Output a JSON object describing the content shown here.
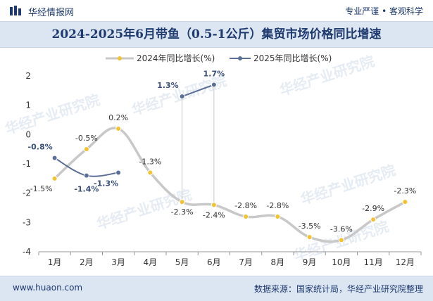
{
  "header": {
    "brand": "华经情报网",
    "tagline": "专业严谨 • 客观科学"
  },
  "title": "2024-2025年6月带鱼（0.5-1公斤）集贸市场价格同比增速",
  "footer": {
    "website": "www.huaon.com",
    "source": "数据来源：国家统计局，华经产业研究院整理"
  },
  "watermark": "华经产业研究院",
  "colors": {
    "series2024_line": "#c8c8c8",
    "series2024_marker": "#f2c230",
    "series2025": "#5a6e96",
    "brand": "#1f3a6e",
    "band": "#dce6f2"
  },
  "chart_data": {
    "type": "line",
    "categories": [
      "1月",
      "2月",
      "3月",
      "4月",
      "5月",
      "6月",
      "7月",
      "8月",
      "9月",
      "10月",
      "11月",
      "12月"
    ],
    "series": [
      {
        "name": "2024年同比增长(%)",
        "values": [
          -1.5,
          -0.5,
          0.2,
          -1.3,
          -2.3,
          -2.4,
          -2.8,
          -2.8,
          -3.5,
          -3.6,
          -2.9,
          -2.3
        ],
        "labels": [
          "-1.5%",
          "-0.5%",
          "0.2%",
          "-1.3%",
          "-2.3%",
          "-2.4%",
          "-2.8%",
          "-2.8%",
          "-3.5%",
          "-3.6%",
          "-2.9%",
          "-2.3%"
        ]
      },
      {
        "name": "2025年同比增长(%)",
        "values": [
          -0.8,
          -1.4,
          -1.3,
          null,
          1.3,
          1.7,
          null,
          null,
          null,
          null,
          null,
          null
        ],
        "labels": [
          "-0.8%",
          "-1.4%",
          "-1.3%",
          "",
          "1.3%",
          "1.7%",
          "",
          "",
          "",
          "",
          "",
          ""
        ]
      }
    ],
    "y_ticks": [
      2,
      1,
      0,
      -1,
      -2,
      -3,
      -4
    ],
    "ylim": [
      -4,
      2
    ],
    "legend": "top-left"
  }
}
